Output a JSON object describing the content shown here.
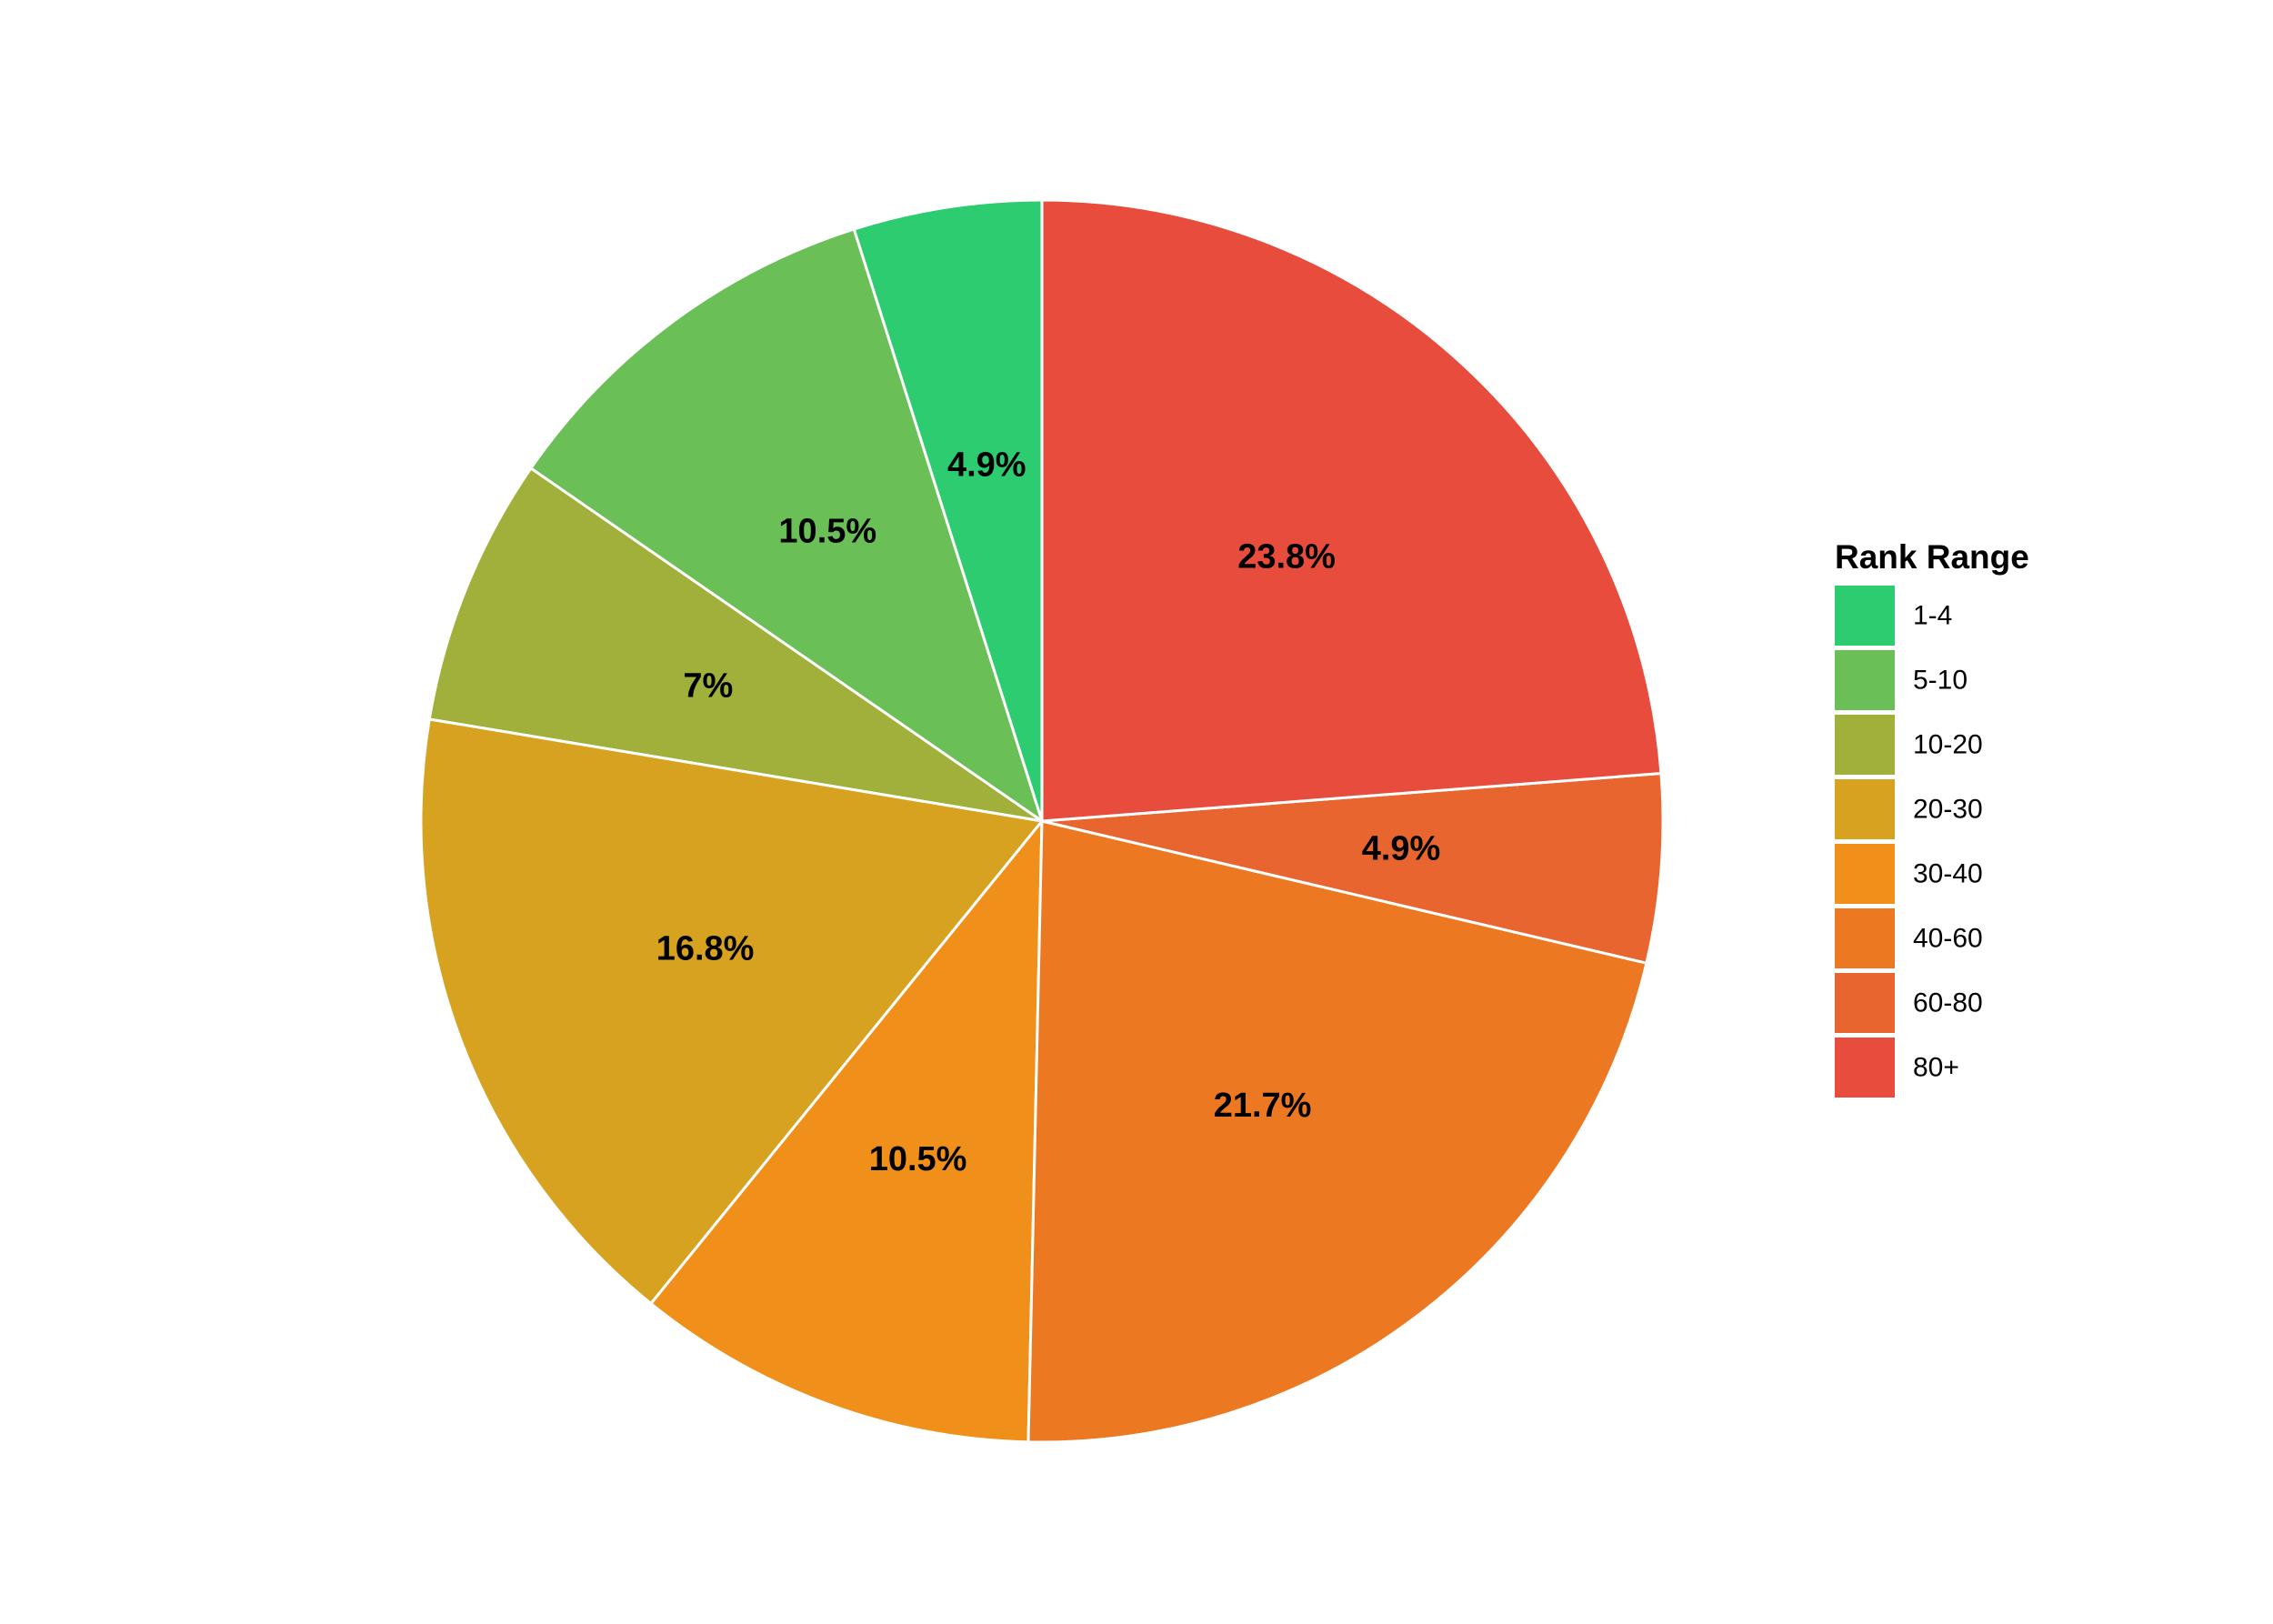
{
  "chart_data": {
    "type": "pie",
    "title": "",
    "categories": [
      "1-4",
      "5-10",
      "10-20",
      "20-30",
      "30-40",
      "40-60",
      "60-80",
      "80+"
    ],
    "values": [
      4.9,
      10.5,
      7,
      16.8,
      10.5,
      21.7,
      4.9,
      23.8
    ],
    "labels": [
      "4.9%",
      "10.5%",
      "7%",
      "16.8%",
      "10.5%",
      "21.7%",
      "4.9%",
      "23.8%"
    ],
    "colors": [
      "#2ecc71",
      "#6abf56",
      "#a0b03a",
      "#d6a220",
      "#f0901a",
      "#ec7822",
      "#e86530",
      "#e74c3c"
    ],
    "direction": "counterclockwise",
    "start_angle": "12 o'clock",
    "legend": {
      "title": "Rank Range",
      "position": "right"
    }
  }
}
